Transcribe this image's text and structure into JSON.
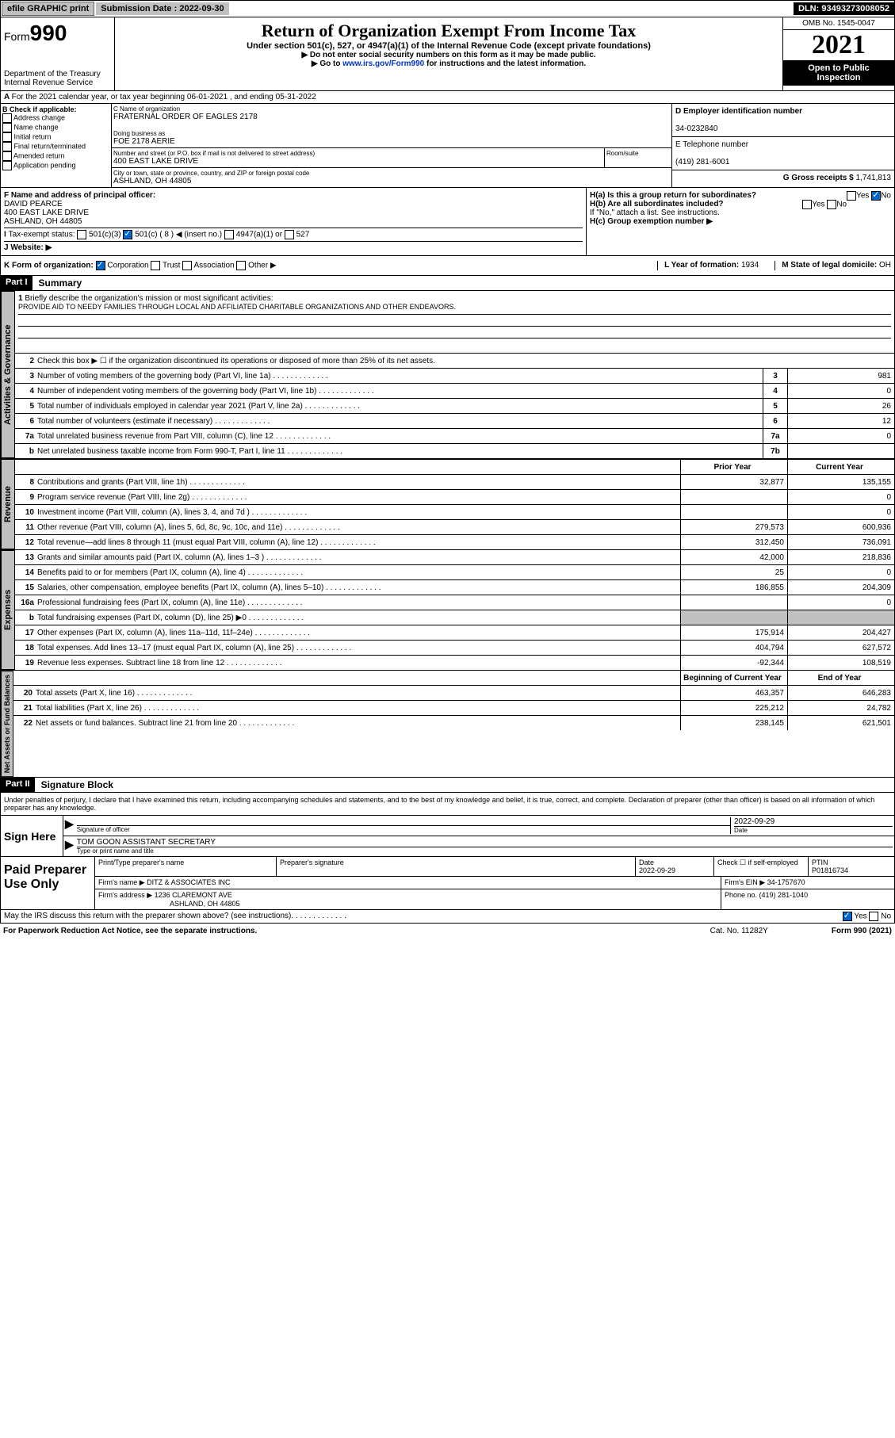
{
  "top": {
    "efile": "efile GRAPHIC print",
    "sub_label": "Submission Date : ",
    "sub_date": "2022-09-30",
    "dln": "DLN: 93493273008052"
  },
  "header": {
    "form_prefix": "Form",
    "form_num": "990",
    "dept": "Department of the Treasury",
    "irs": "Internal Revenue Service",
    "title": "Return of Organization Exempt From Income Tax",
    "sub1": "Under section 501(c), 527, or 4947(a)(1) of the Internal Revenue Code (except private foundations)",
    "sub2": "▶ Do not enter social security numbers on this form as it may be made public.",
    "sub3_pre": "▶ Go to ",
    "sub3_link": "www.irs.gov/Form990",
    "sub3_post": " for instructions and the latest information.",
    "omb": "OMB No. 1545-0047",
    "year": "2021",
    "otpi": "Open to Public Inspection"
  },
  "rowA": "For the 2021 calendar year, or tax year beginning 06-01-2021   , and ending 05-31-2022",
  "secB": {
    "b_label": "B Check if applicable:",
    "b_items": [
      "Address change",
      "Name change",
      "Initial return",
      "Final return/terminated",
      "Amended return",
      "Application pending"
    ],
    "c_label": "C Name of organization",
    "c_val": "FRATERNAL ORDER OF EAGLES 2178",
    "dba_label": "Doing business as",
    "dba_val": "FOE 2178 AERIE",
    "addr_label": "Number and street (or P.O. box if mail is not delivered to street address)",
    "addr_val": "400 EAST LAKE DRIVE",
    "room_label": "Room/suite",
    "city_label": "City or town, state or province, country, and ZIP or foreign postal code",
    "city_val": "ASHLAND, OH  44805",
    "d_label": "D Employer identification number",
    "d_val": "34-0232840",
    "e_label": "E Telephone number",
    "e_val": "(419) 281-6001",
    "g_label": "G Gross receipts $ ",
    "g_val": "1,741,813"
  },
  "secF": {
    "f_label": "F  Name and address of principal officer:",
    "f_name": "DAVID PEARCE",
    "f_addr1": "400 EAST LAKE DRIVE",
    "f_addr2": "ASHLAND, OH  44805",
    "i_label": "Tax-exempt status:",
    "i_501c3": "501(c)(3)",
    "i_501c": "501(c) ( 8 ) ◀ (insert no.)",
    "i_4947": "4947(a)(1) or",
    "i_527": "527",
    "j_label": "Website: ▶",
    "ha_label": "H(a)  Is this a group return for subordinates?",
    "hb_label": "H(b)  Are all subordinates included?",
    "hb_note": "If \"No,\" attach a list. See instructions.",
    "hc_label": "H(c)  Group exemption number ▶"
  },
  "rowK": {
    "k_label": "K Form of organization:",
    "k_corp": "Corporation",
    "k_trust": "Trust",
    "k_assoc": "Association",
    "k_other": "Other ▶",
    "l_label": "L Year of formation: ",
    "l_val": "1934",
    "m_label": "M State of legal domicile: ",
    "m_val": "OH"
  },
  "part1": {
    "label": "Part I",
    "title": "Summary",
    "q1": "Briefly describe the organization's mission or most significant activities:",
    "mission": "PROVIDE AID TO NEEDY FAMILIES THROUGH LOCAL AND AFFILIATED CHARITABLE ORGANIZATIONS AND OTHER ENDEAVORS.",
    "q2": "Check this box ▶ ☐  if the organization discontinued its operations or disposed of more than 25% of its net assets.",
    "vtab1": "Activities & Governance",
    "vtab2": "Revenue",
    "vtab3": "Expenses",
    "vtab4": "Net Assets or Fund Balances",
    "rows_gov": [
      {
        "n": "3",
        "d": "Number of voting members of the governing body (Part VI, line 1a)",
        "b": "3",
        "v": "981"
      },
      {
        "n": "4",
        "d": "Number of independent voting members of the governing body (Part VI, line 1b)",
        "b": "4",
        "v": "0"
      },
      {
        "n": "5",
        "d": "Total number of individuals employed in calendar year 2021 (Part V, line 2a)",
        "b": "5",
        "v": "26"
      },
      {
        "n": "6",
        "d": "Total number of volunteers (estimate if necessary)",
        "b": "6",
        "v": "12"
      },
      {
        "n": "7a",
        "d": "Total unrelated business revenue from Part VIII, column (C), line 12",
        "b": "7a",
        "v": "0"
      },
      {
        "n": "b",
        "d": "Net unrelated business taxable income from Form 990-T, Part I, line 11",
        "b": "7b",
        "v": ""
      }
    ],
    "col_prior": "Prior Year",
    "col_curr": "Current Year",
    "rows_rev": [
      {
        "n": "8",
        "d": "Contributions and grants (Part VIII, line 1h)",
        "p": "32,877",
        "c": "135,155"
      },
      {
        "n": "9",
        "d": "Program service revenue (Part VIII, line 2g)",
        "p": "",
        "c": "0"
      },
      {
        "n": "10",
        "d": "Investment income (Part VIII, column (A), lines 3, 4, and 7d )",
        "p": "",
        "c": "0"
      },
      {
        "n": "11",
        "d": "Other revenue (Part VIII, column (A), lines 5, 6d, 8c, 9c, 10c, and 11e)",
        "p": "279,573",
        "c": "600,936"
      },
      {
        "n": "12",
        "d": "Total revenue—add lines 8 through 11 (must equal Part VIII, column (A), line 12)",
        "p": "312,450",
        "c": "736,091"
      }
    ],
    "rows_exp": [
      {
        "n": "13",
        "d": "Grants and similar amounts paid (Part IX, column (A), lines 1–3 )",
        "p": "42,000",
        "c": "218,836"
      },
      {
        "n": "14",
        "d": "Benefits paid to or for members (Part IX, column (A), line 4)",
        "p": "25",
        "c": "0"
      },
      {
        "n": "15",
        "d": "Salaries, other compensation, employee benefits (Part IX, column (A), lines 5–10)",
        "p": "186,855",
        "c": "204,309"
      },
      {
        "n": "16a",
        "d": "Professional fundraising fees (Part IX, column (A), line 11e)",
        "p": "",
        "c": "0"
      },
      {
        "n": "b",
        "d": "Total fundraising expenses (Part IX, column (D), line 25) ▶0",
        "p": "grey",
        "c": "grey"
      },
      {
        "n": "17",
        "d": "Other expenses (Part IX, column (A), lines 11a–11d, 11f–24e)",
        "p": "175,914",
        "c": "204,427"
      },
      {
        "n": "18",
        "d": "Total expenses. Add lines 13–17 (must equal Part IX, column (A), line 25)",
        "p": "404,794",
        "c": "627,572"
      },
      {
        "n": "19",
        "d": "Revenue less expenses. Subtract line 18 from line 12",
        "p": "-92,344",
        "c": "108,519"
      }
    ],
    "col_begin": "Beginning of Current Year",
    "col_end": "End of Year",
    "rows_net": [
      {
        "n": "20",
        "d": "Total assets (Part X, line 16)",
        "p": "463,357",
        "c": "646,283"
      },
      {
        "n": "21",
        "d": "Total liabilities (Part X, line 26)",
        "p": "225,212",
        "c": "24,782"
      },
      {
        "n": "22",
        "d": "Net assets or fund balances. Subtract line 21 from line 20",
        "p": "238,145",
        "c": "621,501"
      }
    ]
  },
  "part2": {
    "label": "Part II",
    "title": "Signature Block",
    "decl": "Under penalties of perjury, I declare that I have examined this return, including accompanying schedules and statements, and to the best of my knowledge and belief, it is true, correct, and complete. Declaration of preparer (other than officer) is based on all information of which preparer has any knowledge.",
    "sign_here": "Sign Here",
    "sig_officer": "Signature of officer",
    "sig_date_label": "Date",
    "sig_date": "2022-09-29",
    "sig_name": "TOM GOON  ASSISTANT SECRETARY",
    "sig_name_label": "Type or print name and title",
    "paid": "Paid Preparer Use Only",
    "prep_name_label": "Print/Type preparer's name",
    "prep_sig_label": "Preparer's signature",
    "prep_date_label": "Date",
    "prep_date": "2022-09-29",
    "prep_check": "Check ☐ if self-employed",
    "ptin_label": "PTIN",
    "ptin": "P01816734",
    "firm_name_label": "Firm's name    ▶ ",
    "firm_name": "DITZ & ASSOCIATES INC",
    "firm_ein_label": "Firm's EIN ▶ ",
    "firm_ein": "34-1757670",
    "firm_addr_label": "Firm's address ▶ ",
    "firm_addr1": "1236 CLAREMONT AVE",
    "firm_addr2": "ASHLAND, OH  44805",
    "firm_phone_label": "Phone no. ",
    "firm_phone": "(419) 281-1040",
    "discuss": "May the IRS discuss this return with the preparer shown above? (see instructions)"
  },
  "footer": {
    "left": "For Paperwork Reduction Act Notice, see the separate instructions.",
    "mid": "Cat. No. 11282Y",
    "right": "Form 990 (2021)"
  }
}
